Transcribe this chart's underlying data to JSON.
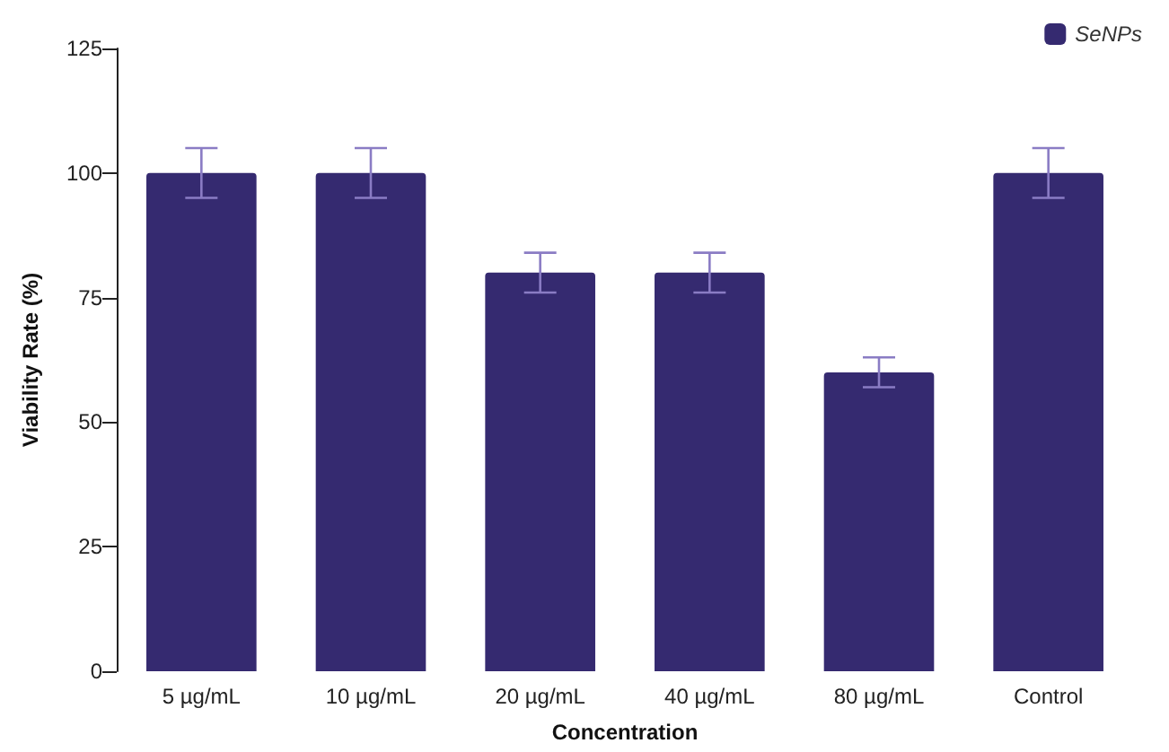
{
  "chart_data": {
    "type": "bar",
    "xlabel": "Concentration",
    "ylabel": "Viability Rate (%)",
    "categories": [
      "5 µg/mL",
      "10 µg/mL",
      "20 µg/mL",
      "40 µg/mL",
      "80 µg/mL",
      "Control"
    ],
    "series": [
      {
        "name": "SeNPs",
        "color": "#352a70",
        "values": [
          100,
          100,
          80,
          80,
          60,
          100
        ],
        "errors": [
          5,
          5,
          4,
          4,
          3,
          5
        ]
      }
    ],
    "ylim": [
      0,
      125
    ],
    "yticks": [
      0,
      25,
      50,
      75,
      100,
      125
    ],
    "grid": false,
    "legend": "top right"
  }
}
